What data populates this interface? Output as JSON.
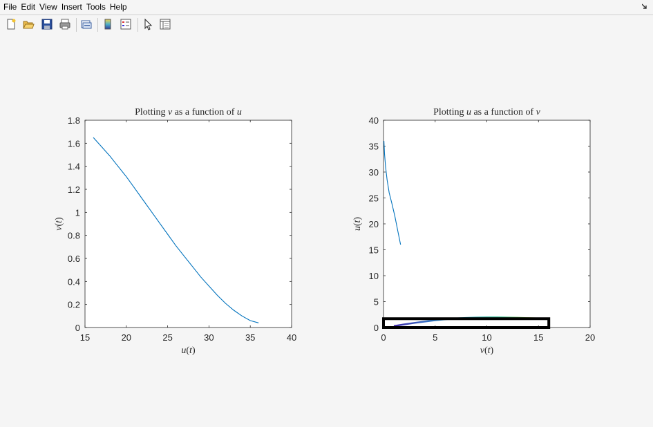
{
  "menu": [
    "File",
    "Edit",
    "View",
    "Insert",
    "Tools",
    "Help"
  ],
  "toolbar": [
    "new-figure-icon",
    "open-file-icon",
    "save-icon",
    "print-icon",
    "link-plot-icon",
    "insert-colorbar-icon",
    "insert-legend-icon",
    "pointer-icon",
    "property-editor-icon"
  ],
  "chart_data": [
    {
      "type": "line",
      "title_parts": [
        "Plotting ",
        "v",
        " as a function of ",
        "u"
      ],
      "xlabel_parts": [
        "u",
        "(",
        "t",
        ")"
      ],
      "ylabel_parts": [
        "v",
        "(",
        "t",
        ")"
      ],
      "xlim": [
        15,
        40
      ],
      "ylim": [
        0,
        1.8
      ],
      "xticks": [
        "15",
        "20",
        "25",
        "30",
        "35",
        "40"
      ],
      "yticks": [
        "0",
        "0.2",
        "0.4",
        "0.6",
        "0.8",
        "1",
        "1.2",
        "1.4",
        "1.6",
        "1.8"
      ],
      "series": [
        {
          "color": "#0072bd",
          "x": [
            16.0,
            17.0,
            18.0,
            19.0,
            20.0,
            21.0,
            22.0,
            23.0,
            24.0,
            25.0,
            26.0,
            27.0,
            28.0,
            29.0,
            30.0,
            31.0,
            32.0,
            33.0,
            34.0,
            35.0,
            36.0
          ],
          "y": [
            1.65,
            1.57,
            1.49,
            1.4,
            1.31,
            1.21,
            1.11,
            1.01,
            0.91,
            0.81,
            0.71,
            0.62,
            0.53,
            0.44,
            0.36,
            0.28,
            0.21,
            0.15,
            0.1,
            0.06,
            0.04
          ]
        }
      ]
    },
    {
      "type": "line",
      "title_parts": [
        "Plotting ",
        "u",
        " as a function of ",
        "v"
      ],
      "xlabel_parts": [
        "v",
        "(",
        "t",
        ")"
      ],
      "ylabel_parts": [
        "u",
        "(",
        "t",
        ")"
      ],
      "xlim": [
        0,
        20
      ],
      "ylim": [
        0,
        40
      ],
      "xticks": [
        "0",
        "5",
        "10",
        "15",
        "20"
      ],
      "yticks": [
        "0",
        "5",
        "10",
        "15",
        "20",
        "25",
        "30",
        "35",
        "40"
      ],
      "series": [
        {
          "color": "#0072bd",
          "x": [
            0.04,
            0.1,
            0.2,
            0.35,
            0.55,
            0.8,
            1.1,
            1.4,
            1.65
          ],
          "y": [
            36,
            33.5,
            31,
            28.5,
            26,
            24,
            21.5,
            18.5,
            16
          ]
        },
        {
          "color": "gradient",
          "x": [
            1,
            2,
            3,
            4,
            5,
            6,
            7,
            8,
            9,
            10,
            11,
            12,
            13,
            14,
            15,
            16
          ],
          "y": [
            0.3,
            0.6,
            0.9,
            1.15,
            1.4,
            1.6,
            1.75,
            1.85,
            1.92,
            1.95,
            1.95,
            1.92,
            1.88,
            1.82,
            1.75,
            1.68
          ]
        }
      ],
      "rectangle": {
        "x": [
          0,
          16
        ],
        "y": [
          0,
          1.7
        ]
      }
    }
  ]
}
